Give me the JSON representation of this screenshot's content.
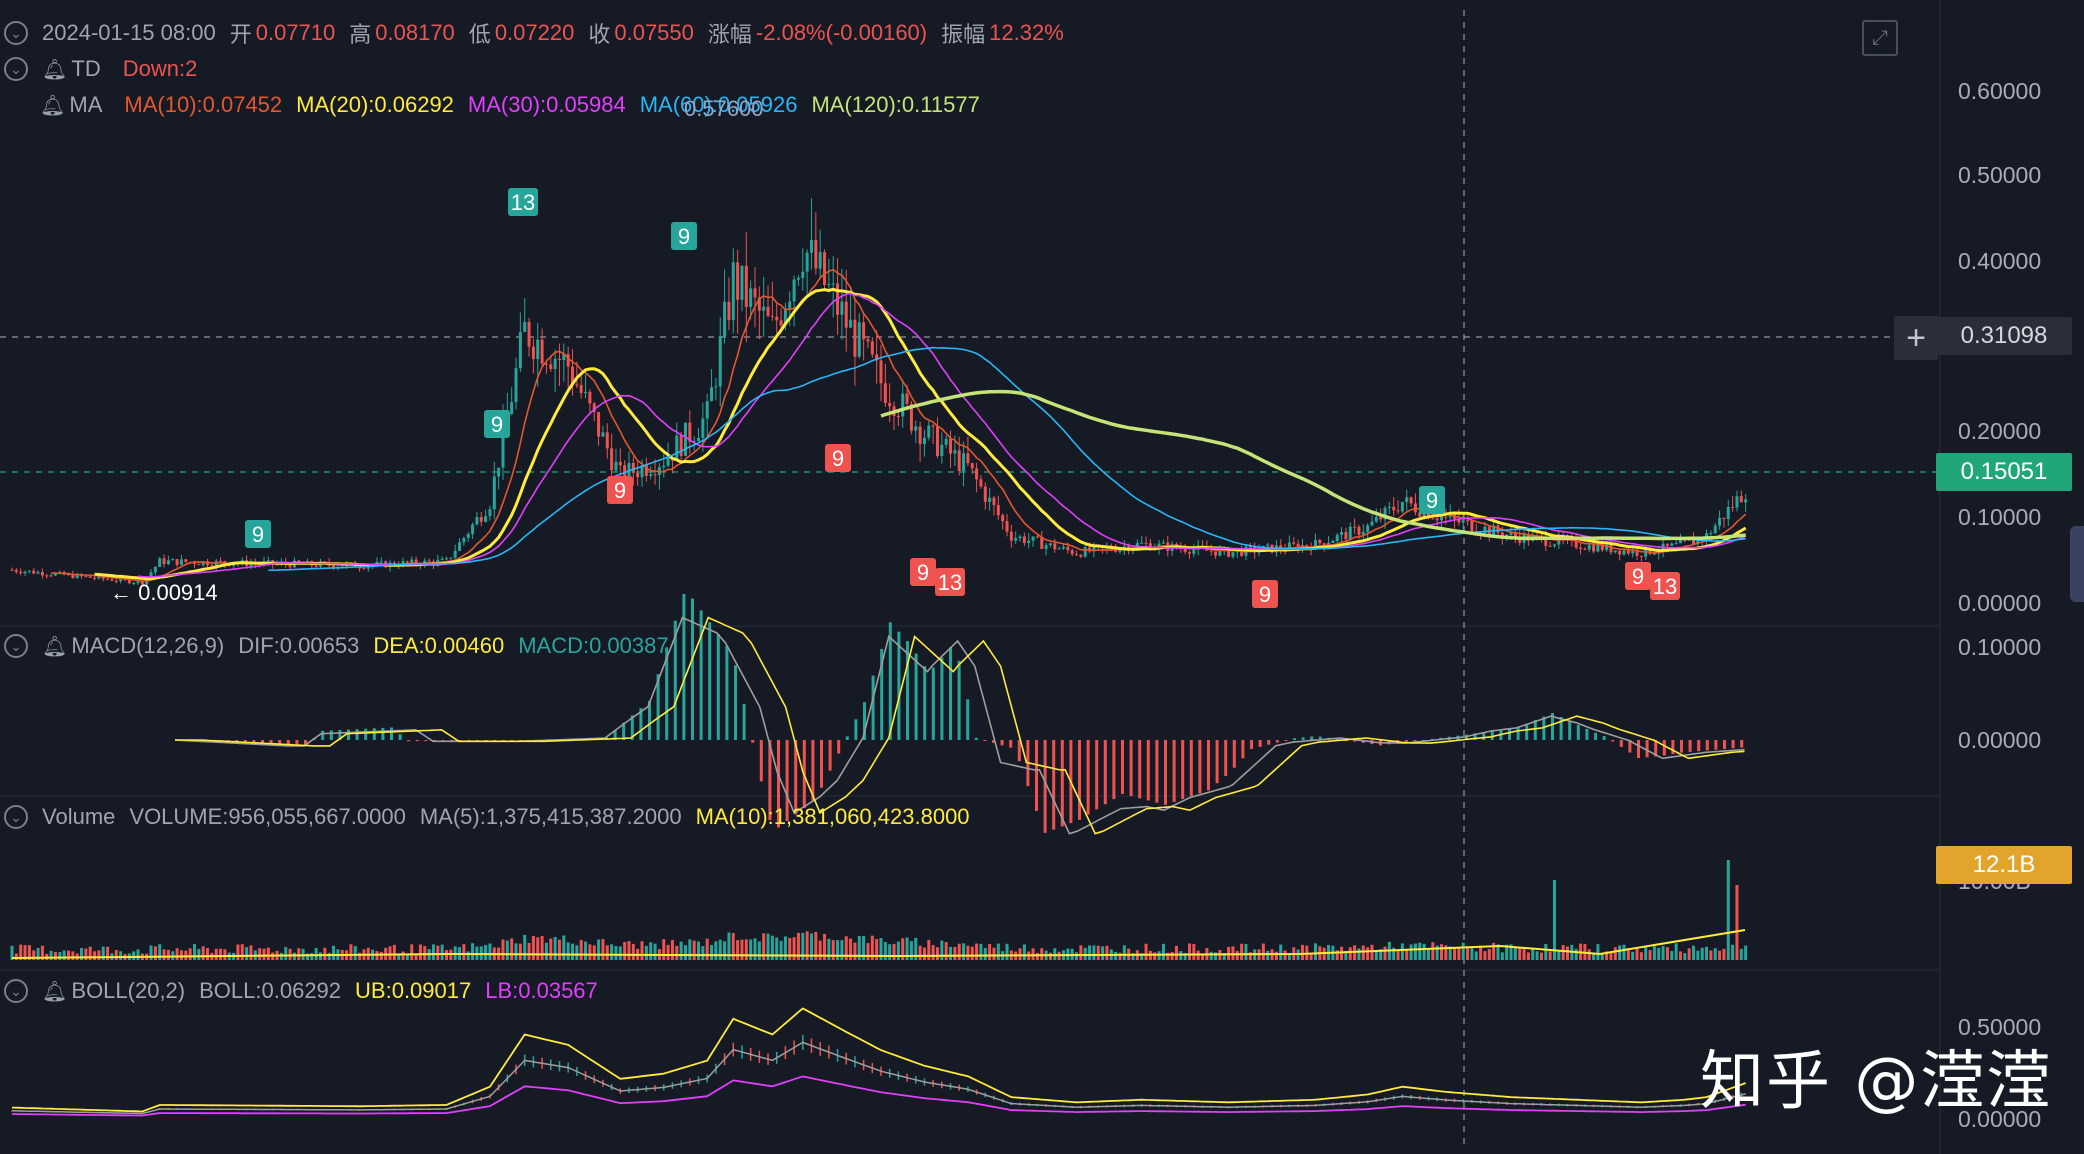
{
  "header": {
    "date": "2024-01-15 08:00",
    "open_label": "开",
    "open": "0.07710",
    "high_label": "高",
    "high": "0.08170",
    "low_label": "低",
    "low": "0.07220",
    "close_label": "收",
    "close": "0.07550",
    "change_label": "涨幅",
    "change": "-2.08%(-0.00160)",
    "amp_label": "振幅",
    "amp": "12.32%"
  },
  "td_row": {
    "name": "TD",
    "value": "Down:2"
  },
  "ma_row": {
    "name": "MA",
    "ma10": "MA(10):0.07452",
    "ma20": "MA(20):0.06292",
    "ma30": "MA(30):0.05984",
    "ma60": "MA(60):0.05926",
    "ma120": "MA(120):0.11577",
    "overlay_high": "0.57600"
  },
  "macd_row": {
    "name": "MACD(12,26,9)",
    "dif": "DIF:0.00653",
    "dea": "DEA:0.00460",
    "macd": "MACD:0.00387"
  },
  "volume_row": {
    "name": "Volume",
    "volume": "VOLUME:956,055,667.0000",
    "ma5": "MA(5):1,375,415,387.2000",
    "ma10": "MA(10):1,381,060,423.8000"
  },
  "boll_row": {
    "name": "BOLL(20,2)",
    "boll": "BOLL:0.06292",
    "ub": "UB:0.09017",
    "lb": "LB:0.03567"
  },
  "price_axis": [
    "0.60000",
    "0.50000",
    "0.40000",
    "0.20000",
    "0.10000",
    "0.00000"
  ],
  "macd_axis": [
    "0.10000",
    "0.00000"
  ],
  "volume_axis": [
    "10.00B"
  ],
  "boll_axis": [
    "0.50000",
    "0.00000"
  ],
  "crosshair_price": "0.31098",
  "last_price": "0.15051",
  "volume_tag": "12.1B",
  "low_marker": "← 0.00914",
  "td_markers": [
    {
      "text": "9",
      "kind": "up"
    },
    {
      "text": "9",
      "kind": "up"
    },
    {
      "text": "13",
      "kind": "up"
    },
    {
      "text": "9",
      "kind": "up"
    },
    {
      "text": "9",
      "kind": "up"
    },
    {
      "text": "9",
      "kind": "down"
    },
    {
      "text": "9",
      "kind": "down"
    },
    {
      "text": "9",
      "kind": "down"
    },
    {
      "text": "13",
      "kind": "down"
    },
    {
      "text": "9",
      "kind": "down"
    },
    {
      "text": "9",
      "kind": "down"
    },
    {
      "text": "13",
      "kind": "down"
    }
  ],
  "watermark": "知乎 @滢滢",
  "colors": {
    "background": "#161a25",
    "up": "#26a69a",
    "down": "#ef5350",
    "ma10": "#e4572e",
    "ma20": "#ffeb3b",
    "ma30": "#e040fb",
    "ma60": "#29b6f6",
    "ma120": "#c5e478",
    "dif": "#9e9e9e",
    "dea": "#ffeb3b",
    "last_price_tag": "#21a67a",
    "volume_tag": "#e2a42b"
  }
}
